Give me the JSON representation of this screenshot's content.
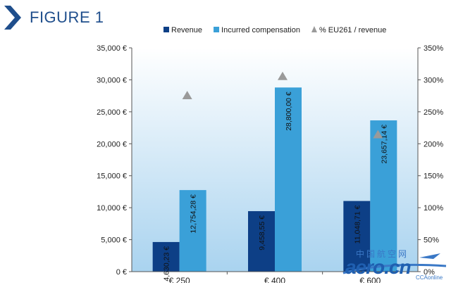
{
  "figure_label": "FIGURE 1",
  "colors": {
    "revenue": "#0d3f86",
    "compensation": "#3aa0d8",
    "marker": "#9a9a9a",
    "title": "#1f4e8c",
    "bg_top": "#ffffff",
    "bg_bottom": "#a9d3ef"
  },
  "watermark": {
    "cn": "中国航空网",
    "latin": "aero.cn",
    "sub": "CCAonline"
  },
  "chart_data": {
    "type": "bar",
    "categories": [
      "€ 250",
      "€ 400",
      "€ 600"
    ],
    "series": [
      {
        "name": "Revenue",
        "kind": "bar",
        "axis": "left",
        "values": [
          4630.23,
          9458.55,
          11048.71
        ],
        "labels": [
          "4,630,23 €",
          "9,458,55 €",
          "11,048,71 €"
        ]
      },
      {
        "name": "Incurred  compensation",
        "kind": "bar",
        "axis": "left",
        "values": [
          12754.28,
          28800.0,
          23657.14
        ],
        "labels": [
          "12,754,28 €",
          "28,800,00 €",
          "23,657,14 €"
        ]
      },
      {
        "name": "% EU261 / revenue",
        "kind": "marker",
        "marker": "triangle",
        "axis": "right",
        "values": [
          275,
          305,
          214
        ]
      }
    ],
    "y_left": {
      "min": 0,
      "max": 35000,
      "step": 5000,
      "tick_labels": [
        "0 €",
        "5,000 €",
        "10,000 €",
        "15,000 €",
        "20,000 €",
        "25,000 €",
        "30,000 €",
        "35,000 €"
      ]
    },
    "y_right": {
      "min": 0,
      "max": 350,
      "step": 50,
      "tick_labels": [
        "0%",
        "50%",
        "100%",
        "150%",
        "200%",
        "250%",
        "300%",
        "350%"
      ]
    },
    "legend_position": "top",
    "grid": false
  }
}
